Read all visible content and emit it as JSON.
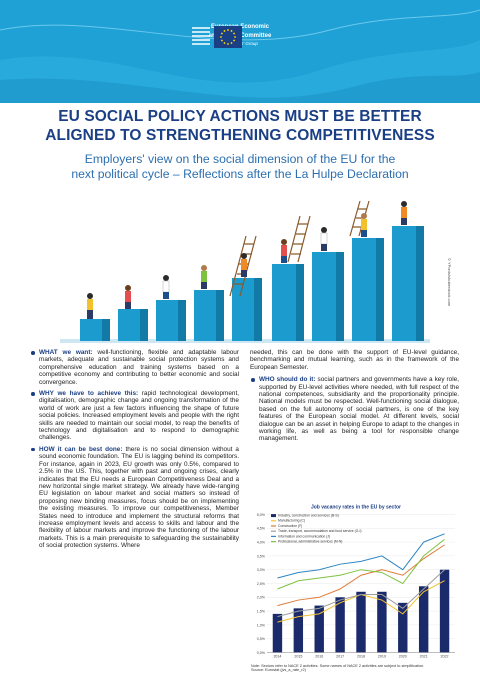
{
  "header": {
    "org_line1": "European Economic",
    "org_line2": "and Social Committee",
    "group": "Employers' Group",
    "colors": {
      "background": "#1fa1d6",
      "flag": "#1b3f85",
      "stars": "#ffdd00"
    }
  },
  "title_line1": "EU SOCIAL POLICY ACTIONS MUST BE BETTER",
  "title_line2": "ALIGNED TO STRENGTHENING COMPETITIVENESS",
  "subtitle_line1": "Employers' view on the social dimension of the EU for the",
  "subtitle_line2": "next political cycle – Reflections after the La Hulpe Declaration",
  "credit": "© YPonts/shutterstock.com",
  "bullets": {
    "what": {
      "label": "WHAT we want:",
      "text": " well-functioning, flexible and adaptable labour markets, adequate and sustainable social protection systems and comprehensive education and training systems based on a competitive economy and contributing to better economic and social convergence."
    },
    "why": {
      "label": "WHY we have to achieve this:",
      "text": " rapid technological development, digitalisation, demographic change and ongoing transformation of the world of work are just a few factors influencing the shape of future social policies. Increased employment levels and people with the right skills are needed to maintain our social model, to reap the benefits of technology and digitalisation and to respond to demographic challenges."
    },
    "how": {
      "label": "HOW it can be best done:",
      "text": " there is no social dimension without a sound economic foundation. The EU is lagging behind its competitors. For instance, again in 2023, EU growth was only 0.5%, compared to 2.5% in the US. This, together with past and ongoing crises, clearly indicates that the EU needs a European Competitiveness Deal and a new horizontal single market strategy. We already have wide-ranging EU legislation on labour market and social matters so instead of proposing new binding measures, focus should be on implementing the existing measures. To improve our competitiveness, Member States need to introduce and implement the structural reforms that increase employment levels and access to skills and labour and the flexibility of labour markets and improve the functioning of the labour markets. This is a main prerequisite to safeguarding the sustainability of social protection systems. Where"
    },
    "how_continued": "needed, this can be done with the support of EU-level guidance, benchmarking and mutual learning, such as in the framework of the European Semester.",
    "who": {
      "label": "WHO should do it:",
      "text": " social partners and governments have a key role, supported by EU-level activities where needed, with full respect of the national competences, subsidiarity and the proportionality principle. National models must be respected. Well-functioning social dialogue, based on the full autonomy of social partners, is one of the key features of the European social model. At different levels, social dialogue can be an asset in helping Europe to adapt to the changes in working life, as well as being a tool for responsible change management."
    }
  },
  "chart_data": {
    "type": "bar",
    "title": "Job vacancy rates in the EU by sector",
    "categories": [
      "2014",
      "2015",
      "2016",
      "2017",
      "2018",
      "2019",
      "2020",
      "2021",
      "2022"
    ],
    "ylim": [
      0,
      5
    ],
    "yticks": [
      "0,0%",
      "0,5%",
      "1,0%",
      "1,5%",
      "2,0%",
      "2,5%",
      "3,0%",
      "3,5%",
      "4,0%",
      "4,5%",
      "5,0%"
    ],
    "series": [
      {
        "name": "Industry, construction and services (B-S)",
        "type": "bar",
        "color": "#1b2a6b",
        "values": [
          1.4,
          1.6,
          1.7,
          2.0,
          2.2,
          2.2,
          1.8,
          2.4,
          3.0
        ]
      },
      {
        "name": "Manufacturing (C)",
        "type": "line",
        "color": "#f2c12e",
        "values": [
          1.1,
          1.3,
          1.4,
          1.8,
          2.1,
          1.9,
          1.4,
          2.2,
          2.6
        ]
      },
      {
        "name": "Construction (F)",
        "type": "line",
        "color": "#e07b39",
        "values": [
          1.7,
          1.9,
          2.0,
          2.3,
          2.8,
          3.0,
          2.8,
          3.4,
          3.9
        ]
      },
      {
        "name": "Trade, transport, accommodation and food service (G-I)",
        "type": "line",
        "color": "#9e9e9e",
        "values": [
          1.3,
          1.5,
          1.6,
          1.9,
          2.1,
          2.1,
          1.6,
          2.3,
          3.0
        ]
      },
      {
        "name": "Information and communication (J)",
        "type": "line",
        "color": "#2e86c1",
        "values": [
          2.7,
          2.9,
          3.0,
          3.2,
          3.3,
          3.5,
          3.0,
          4.0,
          4.3
        ]
      },
      {
        "name": "Professional, administrative services (M-N)",
        "type": "line",
        "color": "#7fc241",
        "values": [
          2.3,
          2.6,
          2.7,
          2.8,
          3.0,
          2.9,
          2.5,
          3.5,
          4.1
        ]
      }
    ],
    "note_line1": "Note: Sectors refer to NACE 2 activities. Some names of NACE 2 activities are subject to simplification.",
    "note_line2": "Source: Eurostat (jvs_a_rate_r2)"
  }
}
